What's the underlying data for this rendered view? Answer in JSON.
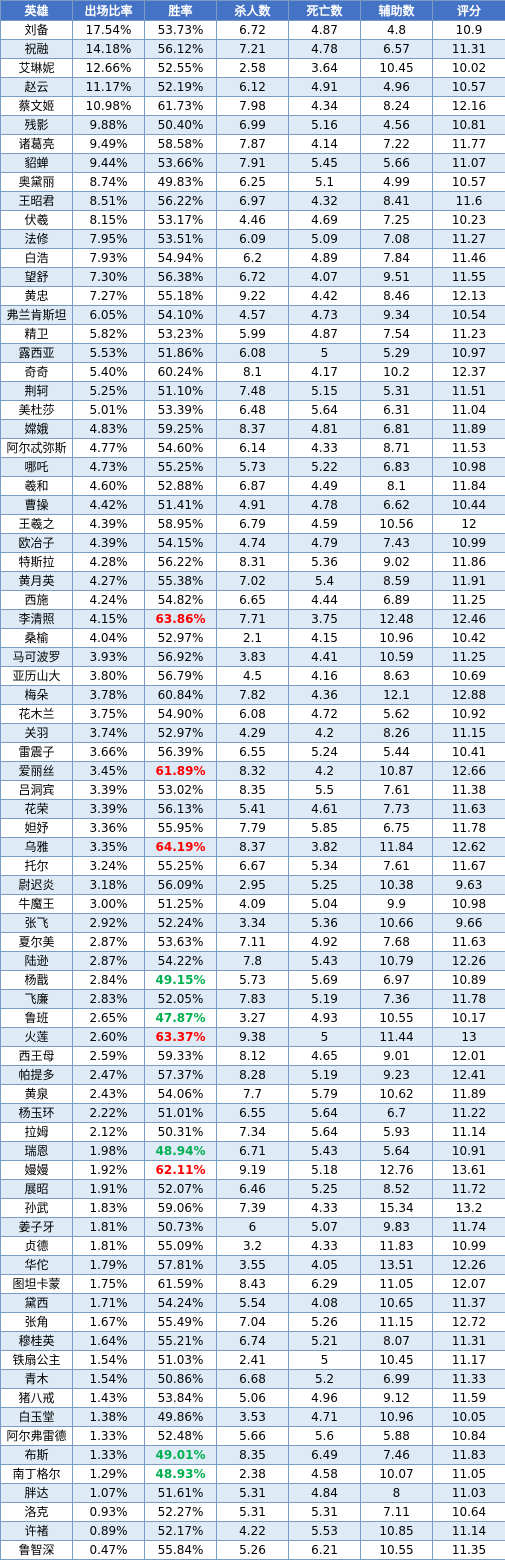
{
  "table": {
    "headers": [
      "英雄",
      "出场比率",
      "胜率",
      "杀人数",
      "死亡数",
      "辅助数",
      "评分"
    ],
    "rows": [
      [
        "刘备",
        "17.54%",
        "53.73%",
        "6.72",
        "4.87",
        "4.8",
        "10.9"
      ],
      [
        "祝融",
        "14.18%",
        "56.12%",
        "7.21",
        "4.78",
        "6.57",
        "11.31"
      ],
      [
        "艾琳妮",
        "12.66%",
        "52.55%",
        "2.58",
        "3.64",
        "10.45",
        "10.02"
      ],
      [
        "赵云",
        "11.17%",
        "52.19%",
        "6.12",
        "4.91",
        "4.96",
        "10.57"
      ],
      [
        "蔡文姬",
        "10.98%",
        "61.73%",
        "7.98",
        "4.34",
        "8.24",
        "12.16"
      ],
      [
        "残影",
        "9.88%",
        "50.40%",
        "6.99",
        "5.16",
        "4.56",
        "10.81"
      ],
      [
        "诸葛亮",
        "9.49%",
        "58.58%",
        "7.87",
        "4.14",
        "7.22",
        "11.77"
      ],
      [
        "貂蝉",
        "9.44%",
        "53.66%",
        "7.91",
        "5.45",
        "5.66",
        "11.07"
      ],
      [
        "奥黛丽",
        "8.74%",
        "49.83%",
        "6.25",
        "5.1",
        "4.99",
        "10.57"
      ],
      [
        "王昭君",
        "8.51%",
        "56.22%",
        "6.97",
        "4.32",
        "8.41",
        "11.6"
      ],
      [
        "伏羲",
        "8.15%",
        "53.17%",
        "4.46",
        "4.69",
        "7.25",
        "10.23"
      ],
      [
        "法修",
        "7.95%",
        "53.51%",
        "6.09",
        "5.09",
        "7.08",
        "11.27"
      ],
      [
        "白浩",
        "7.93%",
        "54.94%",
        "6.2",
        "4.89",
        "7.84",
        "11.46"
      ],
      [
        "望舒",
        "7.30%",
        "56.38%",
        "6.72",
        "4.07",
        "9.51",
        "11.55"
      ],
      [
        "黄忠",
        "7.27%",
        "55.18%",
        "9.22",
        "4.42",
        "8.46",
        "12.13"
      ],
      [
        "弗兰肯斯坦",
        "6.05%",
        "54.10%",
        "4.57",
        "4.73",
        "9.34",
        "10.54"
      ],
      [
        "精卫",
        "5.82%",
        "53.23%",
        "5.99",
        "4.87",
        "7.54",
        "11.23"
      ],
      [
        "露西亚",
        "5.53%",
        "51.86%",
        "6.08",
        "5",
        "5.29",
        "10.97"
      ],
      [
        "奇奇",
        "5.40%",
        "60.24%",
        "8.1",
        "4.17",
        "10.2",
        "12.37"
      ],
      [
        "荆轲",
        "5.25%",
        "51.10%",
        "7.48",
        "5.15",
        "5.31",
        "11.51"
      ],
      [
        "美杜莎",
        "5.01%",
        "53.39%",
        "6.48",
        "5.64",
        "6.31",
        "11.04"
      ],
      [
        "嫦娥",
        "4.83%",
        "59.25%",
        "8.37",
        "4.81",
        "6.81",
        "11.89"
      ],
      [
        "阿尔忒弥斯",
        "4.77%",
        "54.60%",
        "6.14",
        "4.33",
        "8.71",
        "11.53"
      ],
      [
        "哪吒",
        "4.73%",
        "55.25%",
        "5.73",
        "5.22",
        "6.83",
        "10.98"
      ],
      [
        "羲和",
        "4.60%",
        "52.88%",
        "6.87",
        "4.49",
        "8.1",
        "11.84"
      ],
      [
        "曹操",
        "4.42%",
        "51.41%",
        "4.91",
        "4.78",
        "6.62",
        "10.44"
      ],
      [
        "王羲之",
        "4.39%",
        "58.95%",
        "6.79",
        "4.59",
        "10.56",
        "12"
      ],
      [
        "欧冶子",
        "4.39%",
        "54.15%",
        "4.74",
        "4.79",
        "7.43",
        "10.99"
      ],
      [
        "特斯拉",
        "4.28%",
        "56.22%",
        "8.31",
        "5.36",
        "9.02",
        "11.86"
      ],
      [
        "黄月英",
        "4.27%",
        "55.38%",
        "7.02",
        "5.4",
        "8.59",
        "11.91"
      ],
      [
        "西施",
        "4.24%",
        "54.82%",
        "6.65",
        "4.44",
        "6.89",
        "11.25"
      ],
      [
        "李清照",
        "4.15%",
        "63.86%",
        "7.71",
        "3.75",
        "12.48",
        "12.46"
      ],
      [
        "桑榆",
        "4.04%",
        "52.97%",
        "2.1",
        "4.15",
        "10.96",
        "10.42"
      ],
      [
        "马可波罗",
        "3.93%",
        "56.92%",
        "3.83",
        "4.41",
        "10.59",
        "11.25"
      ],
      [
        "亚历山大",
        "3.80%",
        "56.79%",
        "4.5",
        "4.16",
        "8.63",
        "10.69"
      ],
      [
        "梅朵",
        "3.78%",
        "60.84%",
        "7.82",
        "4.36",
        "12.1",
        "12.88"
      ],
      [
        "花木兰",
        "3.75%",
        "54.90%",
        "6.08",
        "4.72",
        "5.62",
        "10.92"
      ],
      [
        "关羽",
        "3.74%",
        "52.97%",
        "4.29",
        "4.2",
        "8.26",
        "11.15"
      ],
      [
        "雷震子",
        "3.66%",
        "56.39%",
        "6.55",
        "5.24",
        "5.44",
        "10.41"
      ],
      [
        "爱丽丝",
        "3.45%",
        "61.89%",
        "8.32",
        "4.2",
        "10.87",
        "12.66"
      ],
      [
        "吕洞宾",
        "3.39%",
        "53.02%",
        "8.35",
        "5.5",
        "7.61",
        "11.38"
      ],
      [
        "花荣",
        "3.39%",
        "56.13%",
        "5.41",
        "4.61",
        "7.73",
        "11.63"
      ],
      [
        "妲妤",
        "3.36%",
        "55.95%",
        "7.79",
        "5.85",
        "6.75",
        "11.78"
      ],
      [
        "乌雅",
        "3.35%",
        "64.19%",
        "8.37",
        "3.82",
        "11.84",
        "12.62"
      ],
      [
        "托尔",
        "3.24%",
        "55.25%",
        "6.67",
        "5.34",
        "7.61",
        "11.67"
      ],
      [
        "尉迟炎",
        "3.18%",
        "56.09%",
        "2.95",
        "5.25",
        "10.38",
        "9.63"
      ],
      [
        "牛魔王",
        "3.00%",
        "51.25%",
        "4.09",
        "5.04",
        "9.9",
        "10.98"
      ],
      [
        "张飞",
        "2.92%",
        "52.24%",
        "3.34",
        "5.36",
        "10.66",
        "9.66"
      ],
      [
        "夏尔美",
        "2.87%",
        "53.63%",
        "7.11",
        "4.92",
        "7.68",
        "11.63"
      ],
      [
        "陆逊",
        "2.87%",
        "54.22%",
        "7.8",
        "5.43",
        "10.79",
        "12.26"
      ],
      [
        "杨戬",
        "2.84%",
        "49.15%",
        "5.73",
        "5.69",
        "6.97",
        "10.89"
      ],
      [
        "飞廉",
        "2.83%",
        "52.05%",
        "7.83",
        "5.19",
        "7.36",
        "11.78"
      ],
      [
        "鲁班",
        "2.65%",
        "47.87%",
        "3.27",
        "4.93",
        "10.55",
        "10.17"
      ],
      [
        "火莲",
        "2.60%",
        "63.37%",
        "9.38",
        "5",
        "11.44",
        "13"
      ],
      [
        "西王母",
        "2.59%",
        "59.33%",
        "8.12",
        "4.65",
        "9.01",
        "12.01"
      ],
      [
        "帕提多",
        "2.47%",
        "57.37%",
        "8.28",
        "5.19",
        "9.23",
        "12.41"
      ],
      [
        "黄泉",
        "2.43%",
        "54.06%",
        "7.7",
        "5.79",
        "10.62",
        "11.89"
      ],
      [
        "杨玉环",
        "2.22%",
        "51.01%",
        "6.55",
        "5.64",
        "6.7",
        "11.22"
      ],
      [
        "拉姆",
        "2.12%",
        "50.31%",
        "7.34",
        "5.64",
        "5.93",
        "11.14"
      ],
      [
        "瑞恩",
        "1.98%",
        "48.94%",
        "6.71",
        "5.43",
        "5.64",
        "10.91"
      ],
      [
        "嫚嫚",
        "1.92%",
        "62.11%",
        "9.19",
        "5.18",
        "12.76",
        "13.61"
      ],
      [
        "展昭",
        "1.91%",
        "52.07%",
        "6.46",
        "5.25",
        "8.52",
        "11.72"
      ],
      [
        "孙武",
        "1.83%",
        "59.06%",
        "7.39",
        "4.33",
        "15.34",
        "13.2"
      ],
      [
        "姜子牙",
        "1.81%",
        "50.73%",
        "6",
        "5.07",
        "9.83",
        "11.74"
      ],
      [
        "贞德",
        "1.81%",
        "55.09%",
        "3.2",
        "4.33",
        "11.83",
        "10.99"
      ],
      [
        "华佗",
        "1.79%",
        "57.81%",
        "3.55",
        "4.05",
        "13.51",
        "12.26"
      ],
      [
        "图坦卡蒙",
        "1.75%",
        "61.59%",
        "8.43",
        "6.29",
        "11.05",
        "12.07"
      ],
      [
        "黛西",
        "1.71%",
        "54.24%",
        "5.54",
        "4.08",
        "10.65",
        "11.37"
      ],
      [
        "张角",
        "1.67%",
        "55.49%",
        "7.04",
        "5.26",
        "11.15",
        "12.72"
      ],
      [
        "穆桂英",
        "1.64%",
        "55.21%",
        "6.74",
        "5.21",
        "8.07",
        "11.31"
      ],
      [
        "铁扇公主",
        "1.54%",
        "51.03%",
        "2.41",
        "5",
        "10.45",
        "11.17"
      ],
      [
        "青木",
        "1.54%",
        "50.86%",
        "6.68",
        "5.2",
        "6.99",
        "11.33"
      ],
      [
        "猪八戒",
        "1.43%",
        "53.84%",
        "5.06",
        "4.96",
        "9.12",
        "11.59"
      ],
      [
        "白玉堂",
        "1.38%",
        "49.86%",
        "3.53",
        "4.71",
        "10.96",
        "10.05"
      ],
      [
        "阿尔弗雷德",
        "1.33%",
        "52.48%",
        "5.66",
        "5.6",
        "5.88",
        "10.84"
      ],
      [
        "布斯",
        "1.33%",
        "49.01%",
        "8.35",
        "6.49",
        "7.46",
        "11.83"
      ],
      [
        "南丁格尔",
        "1.29%",
        "48.93%",
        "2.38",
        "4.58",
        "10.07",
        "11.05"
      ],
      [
        "胖达",
        "1.07%",
        "51.61%",
        "5.31",
        "4.84",
        "8",
        "11.03"
      ],
      [
        "洛克",
        "0.93%",
        "52.27%",
        "5.31",
        "5.31",
        "7.11",
        "10.64"
      ],
      [
        "许褚",
        "0.89%",
        "52.17%",
        "4.22",
        "5.53",
        "10.85",
        "11.14"
      ],
      [
        "鲁智深",
        "0.47%",
        "55.84%",
        "5.26",
        "6.21",
        "10.55",
        "11.35"
      ]
    ],
    "highlights": {
      "red": [
        "李清照",
        "爱丽丝",
        "乌雅",
        "火莲",
        "嫚嫚"
      ],
      "green": [
        "杨戬",
        "鲁班",
        "瑞恩",
        "布斯",
        "南丁格尔"
      ]
    },
    "colors": {
      "header_bg": "#4472c4",
      "header_text": "#ffffff",
      "stripe": "#deebf7",
      "border": "#7a9bc6",
      "highlight_red": "#ff0000",
      "highlight_green": "#00b050"
    }
  }
}
